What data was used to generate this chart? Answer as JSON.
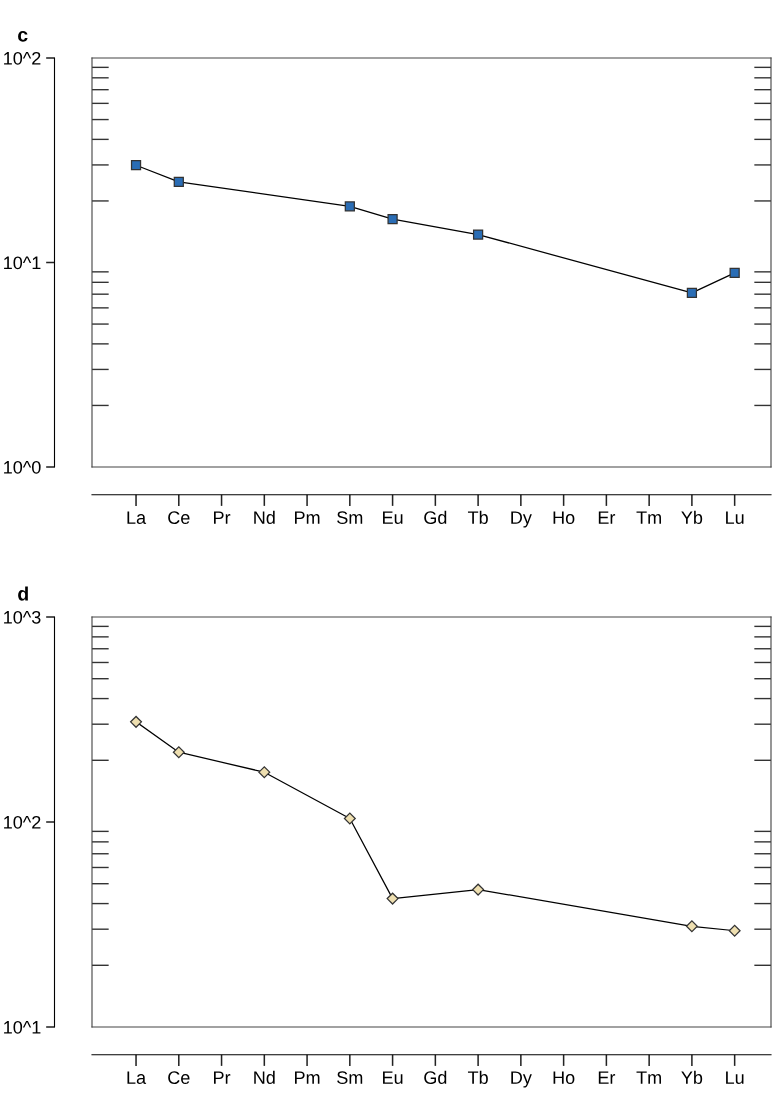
{
  "chart_data": [
    {
      "type": "line",
      "title": "c",
      "categories": [
        "La",
        "Ce",
        "Pr",
        "Nd",
        "Pm",
        "Sm",
        "Eu",
        "Gd",
        "Tb",
        "Dy",
        "Ho",
        "Er",
        "Tm",
        "Yb",
        "Lu"
      ],
      "series": [
        {
          "color": "#2a6db5",
          "values": [
            29.9,
            24.8,
            null,
            null,
            null,
            18.8,
            16.3,
            null,
            13.7,
            null,
            null,
            null,
            null,
            7.1,
            8.9
          ]
        }
      ],
      "log": true,
      "ylim": [
        1,
        100
      ],
      "yticks": [
        {
          "value": 1,
          "label": "10^0"
        },
        {
          "value": 10,
          "label": "10^1"
        },
        {
          "value": 100,
          "label": "10^2"
        }
      ],
      "marker": "square",
      "line_style": "solid",
      "grid": false,
      "legend": false
    },
    {
      "type": "line",
      "title": "d",
      "categories": [
        "La",
        "Ce",
        "Pr",
        "Nd",
        "Pm",
        "Sm",
        "Eu",
        "Gd",
        "Tb",
        "Dy",
        "Ho",
        "Er",
        "Tm",
        "Yb",
        "Lu"
      ],
      "series": [
        {
          "color": "#eedfb0",
          "values": [
            308,
            219,
            null,
            175,
            null,
            104,
            42.3,
            null,
            46.8,
            null,
            null,
            null,
            null,
            31,
            29.5
          ]
        }
      ],
      "log": true,
      "ylim": [
        10,
        1000
      ],
      "yticks": [
        {
          "value": 10,
          "label": "10^1"
        },
        {
          "value": 100,
          "label": "10^2"
        },
        {
          "value": 1000,
          "label": "10^3"
        }
      ],
      "marker": "diamond",
      "line_style": "solid",
      "grid": false,
      "legend": false
    }
  ]
}
